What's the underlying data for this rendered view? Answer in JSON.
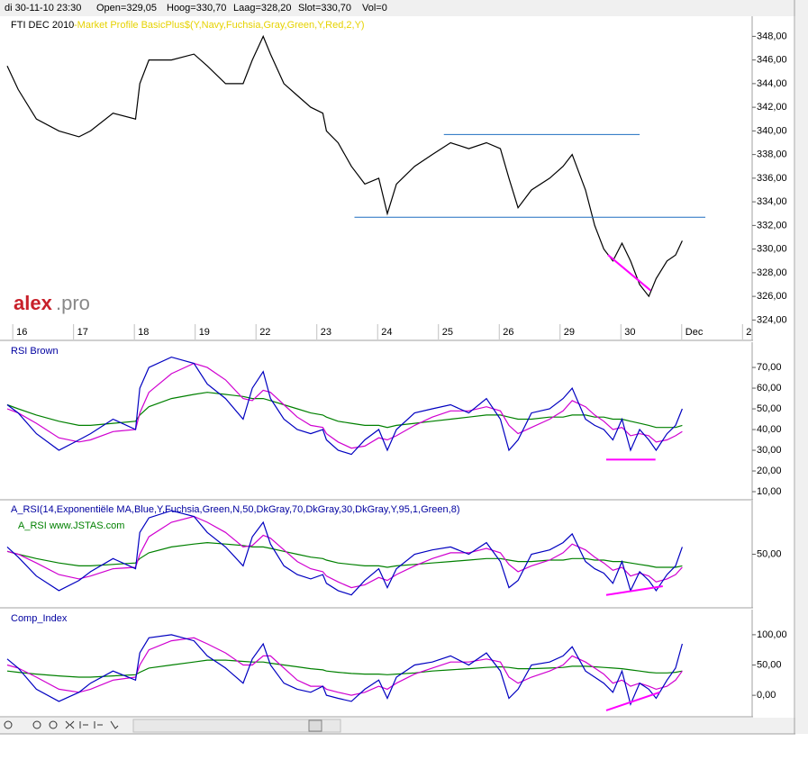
{
  "header": [
    "di 30-11-10 23:30",
    "Open=329,05",
    "Hoog=330,70",
    "Laag=328,20",
    "Slot=330,70",
    "Vol=0"
  ],
  "logo": [
    "alex",
    ".pro"
  ],
  "chart_data": [
    {
      "type": "line",
      "title": "FTI DEC 2010",
      "subtitle": "-Market Profile BasicPlus$(Y,Navy,Fuchsia,Gray,Green,Y,Red,2,Y)",
      "xlim": [
        -0.18,
        12.04
      ],
      "xticks": [
        {
          "value": 0,
          "label": "16"
        },
        {
          "value": 1,
          "label": "17"
        },
        {
          "value": 2,
          "label": "18"
        },
        {
          "value": 3,
          "label": "19"
        },
        {
          "value": 4,
          "label": "22"
        },
        {
          "value": 5,
          "label": "23"
        },
        {
          "value": 6,
          "label": "24"
        },
        {
          "value": 7,
          "label": "25"
        },
        {
          "value": 8,
          "label": "26"
        },
        {
          "value": 9,
          "label": "29"
        },
        {
          "value": 10,
          "label": "30"
        },
        {
          "value": 11,
          "label": "Dec"
        },
        {
          "value": 12,
          "label": "2"
        }
      ],
      "ylim": [
        323.8,
        349.4
      ],
      "yticks": [
        {
          "value": 324,
          "label": "324,00"
        },
        {
          "value": 326,
          "label": "326,00"
        },
        {
          "value": 328,
          "label": "328,00"
        },
        {
          "value": 330,
          "label": "330,00"
        },
        {
          "value": 332,
          "label": "332,00"
        },
        {
          "value": 334,
          "label": "334,00"
        },
        {
          "value": 336,
          "label": "336,00"
        },
        {
          "value": 338,
          "label": "338,00"
        },
        {
          "value": 340,
          "label": "340,00"
        },
        {
          "value": 342,
          "label": "342,00"
        },
        {
          "value": 344,
          "label": "344,00"
        },
        {
          "value": 346,
          "label": "346,00"
        },
        {
          "value": 348,
          "label": "348,00"
        }
      ],
      "x": [
        -0.18,
        0,
        0.3,
        0.67,
        1.0,
        1.19,
        1.56,
        1.93,
        2.0,
        2.15,
        2.52,
        2.89,
        3.11,
        3.41,
        3.7,
        3.85,
        4.03,
        4.15,
        4.37,
        4.59,
        4.81,
        5.01,
        5.07,
        5.26,
        5.48,
        5.7,
        5.93,
        6.07,
        6.22,
        6.52,
        6.81,
        7.11,
        7.41,
        7.7,
        7.93,
        8.07,
        8.22,
        8.44,
        8.74,
        8.96,
        9.11,
        9.33,
        9.48,
        9.63,
        9.78,
        9.93,
        10.07,
        10.22,
        10.37,
        10.49,
        10.67,
        10.81,
        10.92
      ],
      "series": [
        {
          "color": "#000000",
          "values": [
            345.5,
            343.5,
            341,
            340,
            339.5,
            340,
            341.5,
            341,
            344,
            346,
            346,
            346.5,
            345.5,
            344,
            344,
            346,
            348,
            346.5,
            344,
            343,
            342,
            341.5,
            340,
            339,
            337,
            335.5,
            336,
            333,
            335.5,
            337,
            338,
            339,
            338.5,
            339,
            338.5,
            336,
            333.5,
            335,
            336,
            337,
            338,
            335,
            332,
            330,
            329,
            330.5,
            329,
            327,
            326,
            327.5,
            329,
            329.5,
            330.7
          ]
        }
      ],
      "lines": [
        {
          "color": "#1f6fc0",
          "x": [
            7.0,
            10.22
          ],
          "y": [
            339.7,
            339.7
          ]
        },
        {
          "color": "#1f6fc0",
          "x": [
            5.53,
            11.3
          ],
          "y": [
            332.7,
            332.7
          ]
        },
        {
          "color": "#ff00ff",
          "x": [
            9.7,
            10.4
          ],
          "y": [
            329.5,
            326.5
          ]
        }
      ]
    },
    {
      "type": "line",
      "title": "RSI Brown",
      "xlim": [
        -0.18,
        12.04
      ],
      "ylim": [
        7.4,
        80.9
      ],
      "yticks": [
        {
          "value": 10,
          "label": "10,00"
        },
        {
          "value": 20,
          "label": "20,00"
        },
        {
          "value": 30,
          "label": "30,00"
        },
        {
          "value": 40,
          "label": "40,00"
        },
        {
          "value": 50,
          "label": "50,00"
        },
        {
          "value": 60,
          "label": "60,00"
        },
        {
          "value": 70,
          "label": "70,00"
        }
      ],
      "x": [
        -0.18,
        0,
        0.3,
        0.67,
        1.0,
        1.19,
        1.56,
        1.93,
        2.0,
        2.15,
        2.52,
        2.89,
        3.11,
        3.41,
        3.7,
        3.85,
        4.03,
        4.15,
        4.37,
        4.59,
        4.81,
        5.01,
        5.07,
        5.26,
        5.48,
        5.7,
        5.93,
        6.07,
        6.22,
        6.52,
        6.81,
        7.11,
        7.41,
        7.7,
        7.93,
        8.07,
        8.22,
        8.44,
        8.74,
        8.96,
        9.11,
        9.33,
        9.48,
        9.63,
        9.78,
        9.93,
        10.07,
        10.22,
        10.37,
        10.49,
        10.67,
        10.81,
        10.92
      ],
      "series": [
        {
          "color": "#008000",
          "values": [
            52,
            50,
            47,
            44,
            42,
            42,
            43,
            44,
            47,
            51,
            55,
            57,
            58,
            57,
            56,
            55,
            55,
            54,
            52,
            50,
            48,
            47,
            46,
            44,
            43,
            42,
            42,
            41,
            42,
            43,
            44,
            45,
            46,
            47,
            47,
            46,
            45,
            45,
            46,
            46,
            47,
            47,
            46,
            46,
            45,
            45,
            44,
            43,
            42,
            41,
            41,
            41,
            42
          ]
        },
        {
          "color": "#d000d0",
          "values": [
            50,
            48,
            43,
            36,
            34,
            35,
            39,
            40,
            48,
            58,
            67,
            72,
            70,
            64,
            55,
            54,
            59,
            58,
            52,
            46,
            42,
            41,
            38,
            34,
            31,
            32,
            36,
            35,
            37,
            42,
            46,
            49,
            49,
            51,
            49,
            42,
            38,
            41,
            45,
            49,
            54,
            51,
            47,
            44,
            40,
            41,
            37,
            38,
            37,
            34,
            35,
            37,
            39
          ]
        },
        {
          "color": "#0000c0",
          "values": [
            52,
            48,
            38,
            30,
            35,
            38,
            45,
            40,
            60,
            70,
            75,
            72,
            62,
            55,
            45,
            60,
            68,
            55,
            45,
            40,
            38,
            40,
            35,
            30,
            28,
            35,
            40,
            30,
            40,
            48,
            50,
            52,
            48,
            55,
            45,
            30,
            35,
            48,
            50,
            55,
            60,
            45,
            42,
            40,
            35,
            45,
            30,
            40,
            35,
            30,
            38,
            42,
            50
          ]
        }
      ],
      "lines": [
        {
          "color": "#ff00ff",
          "x": [
            9.67,
            10.48
          ],
          "y": [
            25.5,
            25.5
          ]
        }
      ]
    },
    {
      "type": "line",
      "title": "A_RSI(14,Exponentiële MA,Blue,Y,Fuchsia,Green,N,50,DkGray,70,DkGray,30,DkGray,Y,95,1,Green,8)",
      "subtitle": "A_RSI  www.JSTAS.com",
      "xlim": [
        -0.18,
        12.04
      ],
      "ylim": [
        15,
        85
      ],
      "yticks": [
        {
          "value": 50,
          "label": "50,00"
        }
      ],
      "x": [
        -0.18,
        0,
        0.3,
        0.67,
        1.0,
        1.19,
        1.56,
        1.93,
        2.0,
        2.15,
        2.52,
        2.89,
        3.11,
        3.41,
        3.7,
        3.85,
        4.03,
        4.15,
        4.37,
        4.59,
        4.81,
        5.01,
        5.07,
        5.26,
        5.48,
        5.7,
        5.93,
        6.07,
        6.22,
        6.52,
        6.81,
        7.11,
        7.41,
        7.7,
        7.93,
        8.07,
        8.22,
        8.44,
        8.74,
        8.96,
        9.11,
        9.33,
        9.48,
        9.63,
        9.78,
        9.93,
        10.07,
        10.22,
        10.37,
        10.49,
        10.67,
        10.81,
        10.92
      ],
      "series": [
        {
          "color": "#008000",
          "values": [
            52,
            50,
            47,
            44,
            42,
            42,
            43,
            44,
            47,
            51,
            55,
            57,
            58,
            57,
            56,
            55,
            55,
            54,
            52,
            50,
            48,
            47,
            46,
            44,
            43,
            42,
            42,
            41,
            42,
            43,
            44,
            45,
            46,
            47,
            47,
            46,
            45,
            45,
            46,
            46,
            47,
            47,
            46,
            46,
            45,
            45,
            44,
            43,
            42,
            41,
            41,
            41,
            42
          ]
        },
        {
          "color": "#d000d0",
          "values": [
            52,
            50,
            44,
            36,
            33,
            35,
            40,
            41,
            50,
            62,
            72,
            76,
            72,
            65,
            55,
            56,
            63,
            61,
            53,
            45,
            40,
            38,
            35,
            31,
            27,
            29,
            34,
            32,
            36,
            42,
            47,
            51,
            51,
            54,
            51,
            43,
            38,
            42,
            46,
            51,
            57,
            53,
            48,
            44,
            39,
            41,
            35,
            37,
            35,
            31,
            33,
            36,
            41
          ]
        },
        {
          "color": "#0000c0",
          "values": [
            55,
            48,
            35,
            25,
            32,
            38,
            47,
            40,
            65,
            75,
            80,
            76,
            65,
            55,
            42,
            62,
            72,
            57,
            42,
            36,
            33,
            36,
            30,
            25,
            22,
            32,
            40,
            27,
            40,
            50,
            53,
            55,
            50,
            58,
            45,
            27,
            32,
            50,
            53,
            58,
            64,
            45,
            40,
            37,
            30,
            45,
            25,
            38,
            32,
            25,
            36,
            42,
            55
          ]
        }
      ],
      "lines": [
        {
          "color": "#ff00ff",
          "x": [
            9.67,
            10.6
          ],
          "y": [
            22,
            28
          ]
        }
      ]
    },
    {
      "type": "line",
      "title": "Comp_Index",
      "xlim": [
        -0.18,
        12.04
      ],
      "ylim": [
        -31,
        137
      ],
      "yticks": [
        {
          "value": 0,
          "label": "0,00"
        },
        {
          "value": 50,
          "label": "50,00"
        },
        {
          "value": 100,
          "label": "100,00"
        }
      ],
      "x": [
        -0.18,
        0,
        0.3,
        0.67,
        1.0,
        1.19,
        1.56,
        1.93,
        2.0,
        2.15,
        2.52,
        2.89,
        3.11,
        3.41,
        3.7,
        3.85,
        4.03,
        4.15,
        4.37,
        4.59,
        4.81,
        5.01,
        5.07,
        5.26,
        5.48,
        5.7,
        5.93,
        6.07,
        6.22,
        6.52,
        6.81,
        7.11,
        7.41,
        7.7,
        7.93,
        8.07,
        8.22,
        8.44,
        8.74,
        8.96,
        9.11,
        9.33,
        9.48,
        9.63,
        9.78,
        9.93,
        10.07,
        10.22,
        10.37,
        10.49,
        10.67,
        10.81,
        10.92
      ],
      "series": [
        {
          "color": "#008000",
          "values": [
            40,
            38,
            35,
            32,
            30,
            30,
            32,
            34,
            38,
            45,
            50,
            55,
            58,
            58,
            56,
            55,
            55,
            53,
            50,
            47,
            44,
            42,
            40,
            38,
            36,
            35,
            35,
            34,
            35,
            37,
            40,
            42,
            44,
            46,
            47,
            46,
            44,
            44,
            45,
            46,
            48,
            48,
            47,
            46,
            45,
            44,
            42,
            40,
            38,
            37,
            37,
            38,
            40
          ]
        },
        {
          "color": "#d000d0",
          "values": [
            50,
            45,
            30,
            10,
            5,
            10,
            25,
            30,
            50,
            75,
            90,
            95,
            85,
            70,
            50,
            50,
            65,
            65,
            45,
            25,
            15,
            15,
            10,
            5,
            0,
            5,
            15,
            10,
            20,
            35,
            45,
            55,
            55,
            60,
            55,
            30,
            20,
            30,
            40,
            50,
            65,
            55,
            45,
            35,
            20,
            25,
            15,
            20,
            15,
            10,
            15,
            25,
            40
          ]
        },
        {
          "color": "#0000c0",
          "values": [
            60,
            45,
            10,
            -10,
            5,
            20,
            40,
            25,
            70,
            95,
            100,
            90,
            65,
            45,
            20,
            60,
            85,
            50,
            20,
            10,
            5,
            15,
            0,
            -5,
            -10,
            10,
            25,
            -5,
            30,
            50,
            55,
            65,
            50,
            70,
            40,
            -5,
            10,
            50,
            55,
            65,
            80,
            40,
            30,
            20,
            5,
            40,
            -15,
            20,
            10,
            -5,
            25,
            45,
            85
          ]
        }
      ],
      "lines": [
        {
          "color": "#ff00ff",
          "x": [
            9.67,
            10.55
          ],
          "y": [
            -25,
            5
          ]
        }
      ]
    }
  ]
}
